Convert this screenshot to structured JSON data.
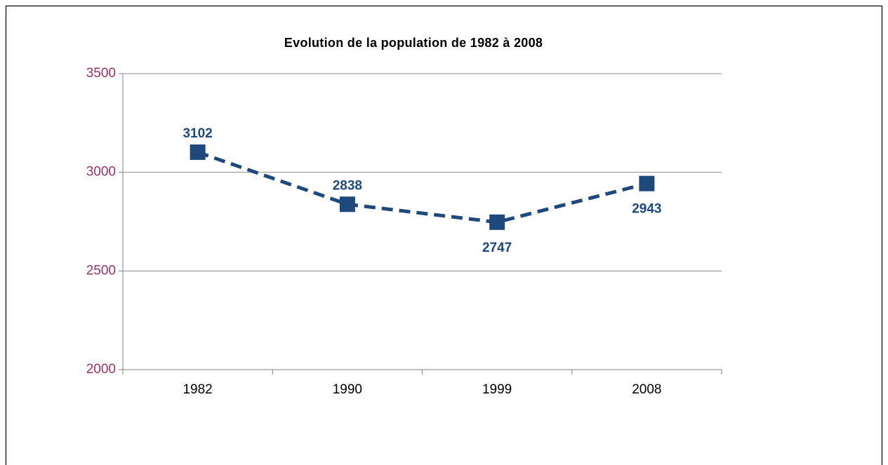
{
  "chart_data": {
    "type": "line",
    "title": "Evolution de la population de 1982 à 2008",
    "categories": [
      "1982",
      "1990",
      "1999",
      "2008"
    ],
    "values": [
      3102,
      2838,
      2747,
      2943
    ],
    "color": "#1f497d",
    "ylim": [
      2000,
      3500
    ],
    "yticks": [
      2000,
      2500,
      3000,
      3500
    ],
    "grid": true,
    "data_labels": true
  }
}
